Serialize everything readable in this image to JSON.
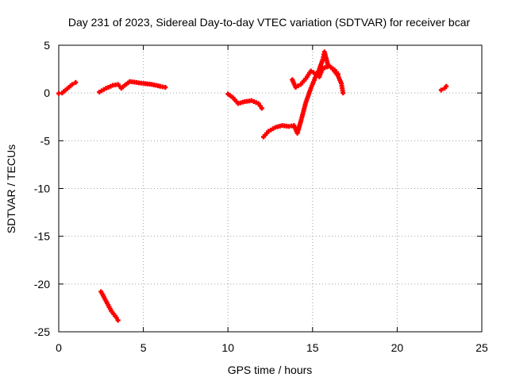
{
  "chart_data": {
    "type": "scatter",
    "title": "Day 231 of 2023, Sidereal Day-to-day VTEC variation (SDTVAR) for receiver bcar",
    "xlabel": "GPS time / hours",
    "ylabel": "SDTVAR / TECUs",
    "xlim": [
      0,
      25
    ],
    "ylim": [
      -25,
      5
    ],
    "xticks": [
      0,
      5,
      10,
      15,
      20,
      25
    ],
    "yticks": [
      5,
      0,
      -5,
      -10,
      -15,
      -20,
      -25
    ],
    "grid": true,
    "marker": "plus",
    "series": [
      {
        "name": "SDTVAR",
        "color": "#ff0000",
        "segments": [
          [
            [
              0.0,
              -0.05
            ],
            [
              0.2,
              0.0
            ],
            [
              0.4,
              0.3
            ],
            [
              0.6,
              0.6
            ],
            [
              0.8,
              0.9
            ],
            [
              1.0,
              1.1
            ]
          ],
          [
            [
              2.4,
              0.1
            ],
            [
              2.8,
              0.5
            ],
            [
              3.2,
              0.8
            ],
            [
              3.5,
              0.9
            ],
            [
              3.7,
              0.5
            ],
            [
              3.9,
              0.8
            ],
            [
              4.2,
              1.2
            ],
            [
              4.6,
              1.1
            ],
            [
              5.0,
              1.0
            ],
            [
              5.5,
              0.9
            ],
            [
              6.0,
              0.7
            ],
            [
              6.3,
              0.6
            ]
          ],
          [
            [
              2.5,
              -20.8
            ],
            [
              2.8,
              -21.8
            ],
            [
              3.1,
              -22.8
            ],
            [
              3.4,
              -23.5
            ],
            [
              3.5,
              -23.8
            ]
          ],
          [
            [
              10.0,
              -0.1
            ],
            [
              10.3,
              -0.5
            ],
            [
              10.6,
              -1.1
            ],
            [
              11.0,
              -0.9
            ],
            [
              11.4,
              -0.8
            ],
            [
              11.8,
              -1.1
            ],
            [
              12.0,
              -1.6
            ]
          ],
          [
            [
              12.1,
              -4.6
            ],
            [
              12.4,
              -4.0
            ],
            [
              12.8,
              -3.6
            ],
            [
              13.2,
              -3.4
            ],
            [
              13.6,
              -3.5
            ],
            [
              13.9,
              -3.4
            ],
            [
              14.1,
              -4.2
            ],
            [
              14.3,
              -3.0
            ],
            [
              14.6,
              -1.0
            ],
            [
              14.9,
              0.5
            ],
            [
              15.2,
              1.8
            ],
            [
              15.4,
              2.5
            ],
            [
              15.6,
              3.5
            ],
            [
              15.7,
              4.3
            ],
            [
              15.9,
              3.0
            ],
            [
              16.2,
              2.5
            ],
            [
              16.5,
              1.8
            ],
            [
              16.7,
              1.0
            ],
            [
              16.8,
              0.0
            ]
          ],
          [
            [
              13.8,
              1.4
            ],
            [
              14.0,
              0.6
            ],
            [
              14.3,
              0.9
            ],
            [
              14.6,
              1.5
            ],
            [
              14.9,
              2.3
            ],
            [
              15.2,
              2.0
            ],
            [
              15.4,
              1.7
            ],
            [
              15.6,
              2.6
            ],
            [
              16.0,
              2.8
            ],
            [
              16.3,
              2.4
            ],
            [
              16.5,
              2.0
            ]
          ],
          [
            [
              22.6,
              0.3
            ],
            [
              22.8,
              0.5
            ],
            [
              22.9,
              0.7
            ]
          ]
        ]
      }
    ]
  }
}
